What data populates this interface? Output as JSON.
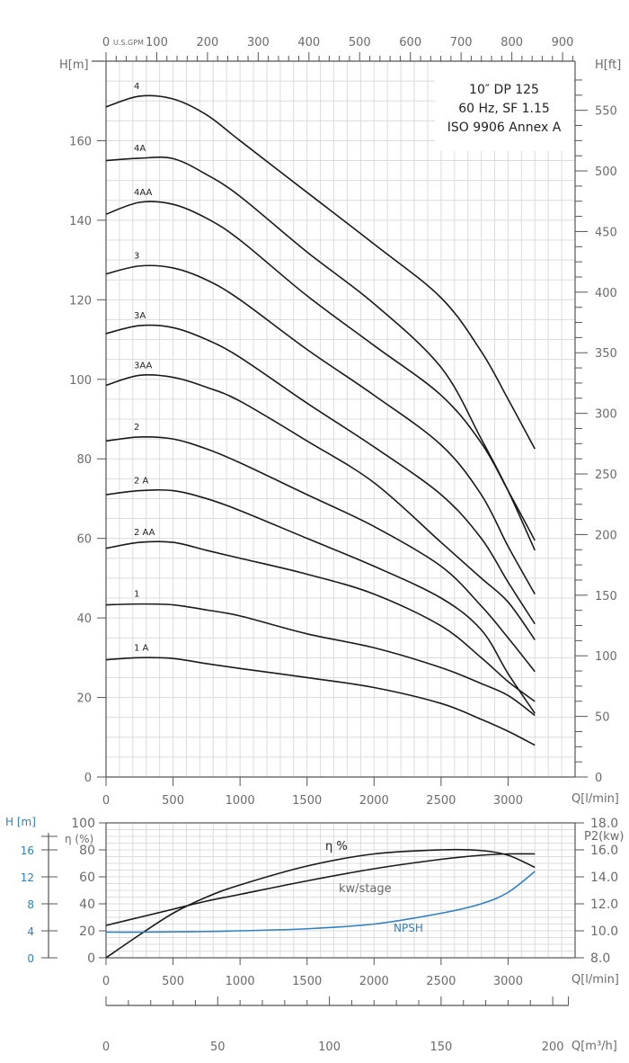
{
  "chart_data": [
    {
      "type": "line",
      "title": "10\" DP 125",
      "subtitle": [
        "60 Hz, SF 1.15",
        "ISO 9906 Annex A"
      ],
      "xlabel": "Q [l/min]",
      "ylabel": "H [m]",
      "y2label": "H [ft]",
      "x2label": "U.S.GPM",
      "xlim": [
        0,
        3500
      ],
      "ylim": [
        0,
        180
      ],
      "grid": true,
      "x_ticks": [
        0,
        500,
        1000,
        1500,
        2000,
        2500,
        3000
      ],
      "y_ticks": [
        0,
        20,
        40,
        60,
        80,
        100,
        120,
        140,
        160
      ],
      "y2_ticks": [
        0,
        50,
        100,
        150,
        200,
        250,
        300,
        350,
        400,
        450,
        500,
        550
      ],
      "x2_ticks": [
        0,
        100,
        200,
        300,
        400,
        500,
        600,
        700,
        800,
        900
      ],
      "x": [
        0,
        250,
        500,
        750,
        1000,
        1500,
        2000,
        2500,
        2800,
        3000,
        3200
      ],
      "series": [
        {
          "name": "4",
          "values": [
            168.5,
            171.2,
            170.5,
            166.5,
            160,
            147,
            134,
            120.5,
            107,
            95,
            82.5
          ]
        },
        {
          "name": "4A",
          "values": [
            155,
            155.6,
            155.5,
            151.5,
            146,
            132,
            119,
            103,
            85,
            72,
            57
          ]
        },
        {
          "name": "4AA",
          "values": [
            141.5,
            144.5,
            144,
            140.5,
            135,
            121,
            108.5,
            96,
            84,
            72,
            59.5
          ]
        },
        {
          "name": "3",
          "values": [
            126.5,
            128.5,
            128,
            125,
            120,
            107.5,
            96,
            83.5,
            71,
            58,
            46
          ]
        },
        {
          "name": "3A",
          "values": [
            111.5,
            113.5,
            113,
            110,
            105.5,
            94,
            83,
            71,
            60,
            49,
            38.5
          ]
        },
        {
          "name": "3AA",
          "values": [
            98.5,
            101,
            100.5,
            98,
            94.5,
            84.5,
            74,
            59,
            50,
            44,
            34.5
          ]
        },
        {
          "name": "2",
          "values": [
            84.5,
            85.5,
            85,
            82.5,
            79,
            71,
            63,
            53,
            43,
            35,
            26.5
          ]
        },
        {
          "name": "2A",
          "values": [
            71,
            72,
            72,
            70,
            67,
            60,
            53,
            45,
            37,
            26,
            16
          ]
        },
        {
          "name": "2AA",
          "values": [
            57.5,
            59,
            59,
            57,
            55,
            51,
            46,
            38,
            30,
            24,
            19
          ]
        },
        {
          "name": "1",
          "values": [
            43.3,
            43.5,
            43.3,
            42,
            40.5,
            36,
            32.5,
            27.5,
            23.5,
            20.5,
            15.5
          ]
        },
        {
          "name": "1A",
          "values": [
            29.5,
            30,
            29.8,
            28.5,
            27.3,
            25,
            22.5,
            18.5,
            14.5,
            11.5,
            8
          ]
        }
      ]
    },
    {
      "type": "line",
      "xlabel": "Q [l/min]",
      "ylabel_left_outer": "H [m]",
      "ylabel_left": "η (%)",
      "ylabel_right": "P2(kw)",
      "xlim": [
        0,
        3500
      ],
      "eta_ticks": [
        0,
        20,
        40,
        60,
        80,
        100
      ],
      "npsh_ticks": [
        0,
        4,
        8,
        12,
        16
      ],
      "p2_ticks": [
        "8.0",
        "10.0",
        "12.0",
        "14.0",
        "16.0",
        "18.0"
      ],
      "x_ticks": [
        0,
        500,
        1000,
        1500,
        2000,
        2500,
        3000
      ],
      "x": [
        0,
        250,
        500,
        750,
        1000,
        1500,
        2000,
        2500,
        2800,
        3000,
        3200
      ],
      "series": [
        {
          "name": "η %",
          "unit": "%",
          "values": [
            0,
            17,
            33,
            45,
            54,
            68,
            77,
            80,
            79.5,
            76,
            67
          ]
        },
        {
          "name": "kw/stage",
          "unit": "kW",
          "values": [
            10.4,
            11.0,
            11.6,
            12.2,
            12.7,
            13.7,
            14.6,
            15.3,
            15.6,
            15.7,
            15.7
          ]
        },
        {
          "name": "NPSH",
          "unit": "m",
          "values": [
            3.8,
            3.8,
            3.85,
            3.9,
            4.0,
            4.3,
            5.0,
            6.6,
            8.0,
            9.7,
            12.8
          ]
        }
      ],
      "colors": {
        "eta": "#1a1a1a",
        "kw": "#1a1a1a",
        "npsh": "#2f7fc1"
      }
    },
    {
      "type": "axis",
      "scale_top_label": "Q [l/min]",
      "scale_top_ticks": [
        0,
        500,
        1000,
        1500,
        2000,
        2500,
        3000
      ],
      "scale_bottom_label": "Q [m³/h]",
      "scale_bottom_ticks": [
        0,
        50,
        100,
        150,
        200
      ]
    }
  ],
  "labels": {
    "title_line1": "10″ DP 125",
    "title_line2": "60 Hz, SF 1.15",
    "title_line3": "ISO 9906 Annex A",
    "h_m": "H[m]",
    "h_ft": "H[ft]",
    "gpm_unit": "U.S.GPM",
    "q_lmin": "Q[l/min]",
    "h_m_lower": "H [m]",
    "eta_pct": "η (%)",
    "p2": "P2(kw)",
    "eta_curve": "η %",
    "kw_curve": "kw/stage",
    "npsh_curve": "NPSH",
    "q_m3h": "Q[m³/h]"
  }
}
